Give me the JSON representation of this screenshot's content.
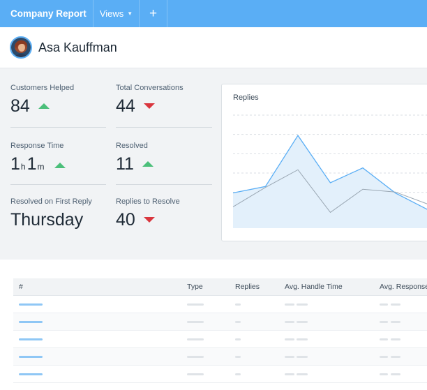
{
  "header": {
    "brand": "Company Report",
    "views_label": "Views",
    "add_tab": "+"
  },
  "profile": {
    "name": "Asa Kauffman"
  },
  "stats": [
    {
      "label": "Customers Helped",
      "value": "84",
      "trend": "up"
    },
    {
      "label": "Total Conversations",
      "value": "44",
      "trend": "down"
    },
    {
      "label": "Response Time",
      "value_h": "1",
      "unit_h": "h",
      "value_m": "1",
      "unit_m": "m",
      "trend": "up"
    },
    {
      "label": "Resolved",
      "value": "11",
      "trend": "up"
    },
    {
      "label": "Resolved on First Reply",
      "value": "Thursday"
    },
    {
      "label": "Replies to Resolve",
      "value": "40",
      "trend": "down"
    }
  ],
  "chart_data": {
    "type": "area",
    "title": "Replies",
    "grid": true,
    "series": [
      {
        "values": [
          38,
          45,
          100,
          49,
          65,
          38,
          20
        ]
      },
      {
        "values": [
          23,
          44,
          63,
          17,
          42,
          39,
          26
        ]
      }
    ],
    "ylim": [
      0,
      125
    ],
    "colors": {
      "primary": "#5aaef5",
      "fill": "#e3f0fb",
      "secondary": "#9aa7b3"
    }
  },
  "table": {
    "columns": [
      "#",
      "Type",
      "Replies",
      "Avg. Handle Time",
      "Avg. Response"
    ],
    "row_count": 5
  },
  "colors": {
    "accent": "#5aaef5",
    "up": "#4bbf7a",
    "down": "#d9363e"
  }
}
